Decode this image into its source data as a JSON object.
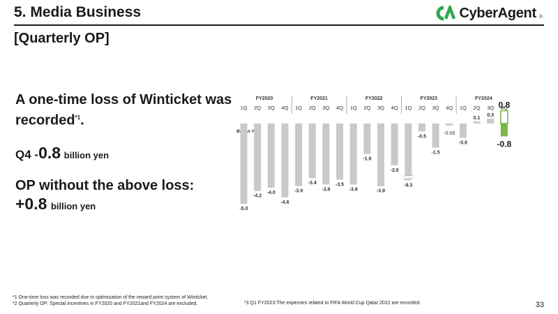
{
  "header": {
    "title": "5. Media Business",
    "section": "[Quarterly OP]",
    "logo_text": "CyberAgent",
    "logo_reg": "®"
  },
  "summary": {
    "headline_1": "A one-time loss of Winticket was",
    "headline_2": "recorded",
    "headline_sup": "*1",
    "headline_end": ".",
    "q4_prefix": "Q4 -",
    "q4_value": "0.8",
    "q4_unit": "billion yen",
    "op_label": "OP without the above loss:",
    "op_value": "+0.8",
    "op_unit": "billion yen"
  },
  "footnotes": {
    "note1": "*1 One-time loss was recorded due to optimization of the reward point system of Winticket.",
    "note2": "*2 Quarterly OP: Special incentives in FY2020 and FY2021and FY2024 are excluded.",
    "note3": "*3 Q1 FY2023:The expenses related to FIFA World Cup Qatar 2022 are recorded."
  },
  "page_number": "33",
  "colors": {
    "bar": "#c9c9c9",
    "highlight": "#7ab648",
    "outline": "#7ab648",
    "text": "#1a1a1a"
  },
  "chart_data": {
    "type": "bar",
    "unit_label": "Billion Yen",
    "fiscal_years": [
      "FY2020",
      "FY2021",
      "FY2022",
      "FY2023",
      "FY2024"
    ],
    "quarters": [
      "1Q",
      "2Q",
      "3Q",
      "4Q",
      "1Q",
      "2Q",
      "3Q",
      "4Q",
      "1Q",
      "2Q",
      "3Q",
      "4Q",
      "1Q",
      "2Q",
      "3Q",
      "4Q",
      "1Q",
      "2Q",
      "3Q",
      "4Q"
    ],
    "values": [
      -5.0,
      -4.2,
      -4.0,
      -4.6,
      -3.9,
      -3.4,
      -3.8,
      -3.5,
      -3.8,
      -1.9,
      -3.9,
      -2.6,
      -9.3,
      -0.5,
      -1.5,
      -0.06,
      -0.9,
      0.1,
      0.3,
      -0.8
    ],
    "labels": [
      "-5.0",
      "-4.2",
      "-4.0",
      "-4.6",
      "-3.9",
      "-3.4",
      "-3.8",
      "-3.5",
      "-3.8",
      "-1.9",
      "-3.9",
      "-2.6",
      "-9.3",
      "-0.5",
      "-1.5",
      "-0.06",
      "-0.9",
      "0.1",
      "0.3",
      "-0.8"
    ],
    "highlight_index": 19,
    "highlight_excluded_loss_value": 0.8,
    "highlight_excluded_loss_label": "0.8",
    "axis_break_index": 12
  }
}
